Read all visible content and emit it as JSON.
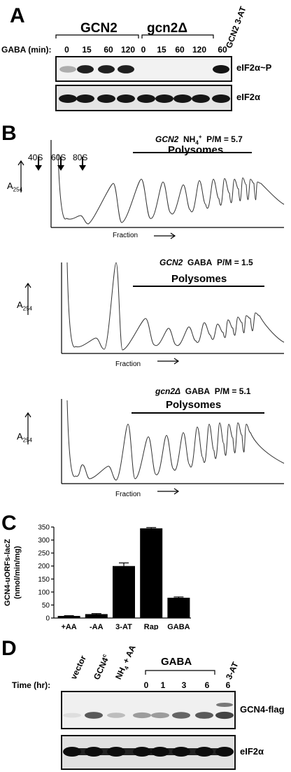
{
  "panel_a": {
    "letter": "A",
    "group1": "GCN2",
    "group2": "gcn2Δ",
    "group3": "GCN2 3-AT",
    "gaba_label": "GABA (min):",
    "times": [
      "0",
      "15",
      "60",
      "120",
      "0",
      "15",
      "60",
      "120",
      "60"
    ],
    "blot1_label": "eIF2α~P",
    "blot2_label": "eIF2α",
    "blot1_band_intensity": [
      0.35,
      0.95,
      0.95,
      0.95,
      0,
      0,
      0,
      0,
      1.0
    ]
  },
  "panel_b": {
    "letter": "B",
    "y_axis_main": "A",
    "y_axis_sub": "254",
    "x_axis": "Fraction",
    "marker_labels": [
      "40S",
      "60S",
      "80S"
    ],
    "profiles": [
      {
        "strain": "GCN2",
        "condition_pre": "NH",
        "condition_sub": "4",
        "condition_sup": "+",
        "condition_post": "",
        "pm": "P/M = 5.7",
        "polysomes": "Polysomes"
      },
      {
        "strain": "GCN2",
        "condition_pre": "GABA",
        "condition_sub": "",
        "condition_sup": "",
        "condition_post": "",
        "pm": "P/M = 1.5",
        "polysomes": "Polysomes"
      },
      {
        "strain": "gcn2Δ",
        "condition_pre": "GABA",
        "condition_sub": "",
        "condition_sup": "",
        "condition_post": "",
        "pm": "P/M = 5.1",
        "polysomes": "Polysomes"
      }
    ]
  },
  "panel_c": {
    "letter": "C",
    "chart_data": {
      "type": "bar",
      "categories": [
        "+AA",
        "-AA",
        "3-AT",
        "Rap",
        "GABA"
      ],
      "values": [
        8,
        15,
        200,
        345,
        78
      ],
      "errors": [
        1,
        2,
        12,
        3,
        3
      ],
      "ylabel_line1": "GCN4-uORFs-lacZ",
      "ylabel_line2": "(nmol/min/mg)",
      "ylim": [
        0,
        350
      ],
      "yticks": [
        0,
        50,
        100,
        150,
        200,
        250,
        300,
        350
      ],
      "bar_color": "#000000"
    }
  },
  "panel_d": {
    "letter": "D",
    "time_label": "Time (hr):",
    "lane_labels": [
      "vector",
      "GCN4",
      "NH"
    ],
    "gcn4_sup": "c",
    "nh4_sub": "4",
    "nh4_rest": " + AA",
    "gaba_label": "GABA",
    "three_at_label": "3-AT",
    "times": [
      "0",
      "1",
      "3",
      "6",
      "6"
    ],
    "blot1_label": "GCN4-flag",
    "blot2_label": "eIF2α",
    "blot1_band_intensity": [
      0.15,
      0.75,
      0.3,
      0.45,
      0.45,
      0.7,
      0.75,
      0.85
    ]
  }
}
